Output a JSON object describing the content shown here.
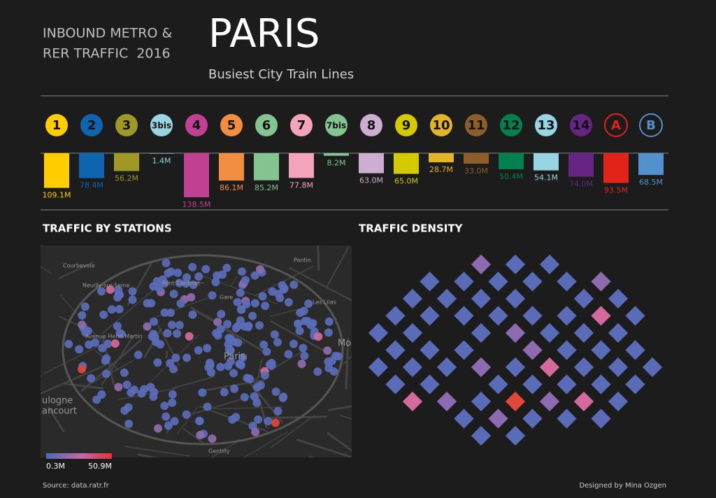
{
  "header": {
    "kicker_lines": [
      "INBOUND METRO &",
      "RER TRAFFIC  2016"
    ],
    "title": "PARIS",
    "subtitle": "Busiest City Train Lines"
  },
  "chart_data": {
    "type": "bar",
    "categories": [
      "1",
      "2",
      "3",
      "3bis",
      "4",
      "5",
      "6",
      "7",
      "7bis",
      "8",
      "9",
      "10",
      "11",
      "12",
      "13",
      "14",
      "A",
      "B"
    ],
    "values": [
      109.1,
      78.4,
      56.2,
      1.4,
      138.5,
      86.1,
      85.2,
      77.8,
      8.2,
      63.0,
      65.0,
      28.7,
      33.0,
      50.4,
      54.1,
      74.0,
      93.5,
      68.5
    ],
    "value_labels": [
      "109.1M",
      "78.4M",
      "56.2M",
      "1.4M",
      "138.5M",
      "86.1M",
      "85.2M",
      "77.8M",
      "8.2M",
      "63.0M",
      "65.0M",
      "28.7M",
      "33.0M",
      "50.4M",
      "54.1M",
      "74.0M",
      "93.5M",
      "68.5M"
    ],
    "colors": [
      "#ffcd00",
      "#0e64ae",
      "#9f9825",
      "#98d4e2",
      "#c04191",
      "#f28e42",
      "#83c491",
      "#f3a4ba",
      "#83c491",
      "#ceadd2",
      "#d5c900",
      "#e3b32a",
      "#8d5e2a",
      "#00814f",
      "#98d4e2",
      "#662483",
      "#e2231a",
      "#5291ce"
    ]
  },
  "stations_map": {
    "title": "TRAFFIC BY STATIONS",
    "place_labels": [
      "Courbevoie",
      "Neuilly-sur-Seine",
      "Pont Cardinet",
      "Gare",
      "Pantin",
      "Les Lilas",
      "Avenue Henri Martin",
      "Paris",
      "Mo",
      "ulogne",
      "ancourt",
      "Gentilly"
    ],
    "legend": {
      "min_label": "0.3M",
      "max_label": "50.9M"
    }
  },
  "density": {
    "title": "TRAFFIC DENSITY"
  },
  "footer": {
    "source": "Source: data.ratr.fr",
    "credit": "Designed by Mina Ozgen"
  }
}
